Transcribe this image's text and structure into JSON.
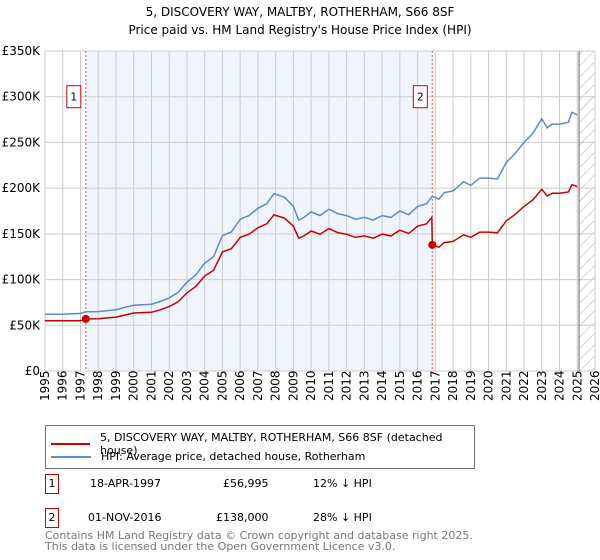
{
  "chart_data": {
    "type": "line",
    "title": "5, DISCOVERY WAY, MALTBY, ROTHERHAM, S66 8SF",
    "subtitle": "Price paid vs. HM Land Registry's House Price Index (HPI)",
    "xlim": [
      1995,
      2026
    ],
    "ylim": [
      0,
      350000
    ],
    "y_ticks": [
      0,
      50000,
      100000,
      150000,
      200000,
      250000,
      300000,
      350000
    ],
    "y_tick_labels": [
      "£0",
      "£50K",
      "£100K",
      "£150K",
      "£200K",
      "£250K",
      "£300K",
      "£350K"
    ],
    "x_tick_labels": [
      "1995",
      "1996",
      "1997",
      "1998",
      "1999",
      "2000",
      "2001",
      "2002",
      "2003",
      "2004",
      "2005",
      "2006",
      "2007",
      "2008",
      "2009",
      "2010",
      "2011",
      "2012",
      "2013",
      "2014",
      "2015",
      "2016",
      "2017",
      "2018",
      "2019",
      "2020",
      "2021",
      "2022",
      "2023",
      "2024",
      "2025",
      "2026"
    ],
    "grid": true,
    "shaded_period": [
      1997.3,
      2016.83
    ],
    "forecast_hatch_from": 2025.1,
    "series": [
      {
        "name": "5, DISCOVERY WAY, MALTBY, ROTHERHAM, S66 8SF (detached house)",
        "color": "#cc0000",
        "x": [
          1995,
          1996,
          1997,
          1997.3,
          1998,
          1999,
          2000,
          2001,
          2001.5,
          2002,
          2002.5,
          2003,
          2003.5,
          2004,
          2004.5,
          2005,
          2005.5,
          2006,
          2006.5,
          2007,
          2007.5,
          2007.9,
          2008.5,
          2009,
          2009.3,
          2009.6,
          2010,
          2010.5,
          2011,
          2011.5,
          2012,
          2012.5,
          2013,
          2013.5,
          2014,
          2014.5,
          2015,
          2015.5,
          2016,
          2016.5,
          2016.8,
          2016.83,
          2017.2,
          2017.5,
          2018,
          2018.6,
          2019,
          2019.5,
          2020,
          2020.5,
          2021,
          2021.5,
          2022,
          2022.5,
          2023,
          2023.3,
          2023.6,
          2024,
          2024.5,
          2024.7,
          2025
        ],
        "y": [
          55000,
          55000,
          55000,
          57000,
          57200,
          59000,
          63400,
          64200,
          66900,
          70400,
          75700,
          85400,
          92400,
          103800,
          110000,
          130200,
          133800,
          146100,
          149600,
          156600,
          161000,
          170700,
          167200,
          158400,
          145200,
          147800,
          153100,
          149600,
          155800,
          151400,
          149600,
          146100,
          147800,
          145200,
          149600,
          147800,
          154000,
          150500,
          158400,
          161000,
          168000,
          138000,
          135400,
          140400,
          141800,
          149000,
          146200,
          151900,
          151900,
          151200,
          164200,
          171400,
          180000,
          187200,
          198700,
          191500,
          194400,
          194400,
          195800,
          203800,
          201600
        ]
      },
      {
        "name": "HPI: Average price, detached house, Rotherham",
        "color": "#5b8bd0",
        "x": [
          1995,
          1996,
          1997,
          1997.3,
          1998,
          1999,
          2000,
          2001,
          2001.5,
          2002,
          2002.5,
          2003,
          2003.5,
          2004,
          2004.5,
          2005,
          2005.5,
          2006,
          2006.5,
          2007,
          2007.5,
          2007.9,
          2008.5,
          2009,
          2009.3,
          2009.6,
          2010,
          2010.5,
          2011,
          2011.5,
          2012,
          2012.5,
          2013,
          2013.5,
          2014,
          2014.5,
          2015,
          2015.5,
          2016,
          2016.5,
          2016.83,
          2017.2,
          2017.5,
          2018,
          2018.6,
          2019,
          2019.5,
          2020,
          2020.5,
          2021,
          2021.5,
          2022,
          2022.5,
          2023,
          2023.3,
          2023.6,
          2024,
          2024.5,
          2024.7,
          2025
        ],
        "y": [
          62000,
          62000,
          63000,
          64700,
          65000,
          67000,
          72000,
          73000,
          76000,
          80000,
          86000,
          97000,
          105000,
          118000,
          125000,
          148000,
          152000,
          166000,
          170000,
          178000,
          183000,
          194000,
          190000,
          180000,
          165000,
          168000,
          174000,
          170000,
          177000,
          172000,
          170000,
          166000,
          168000,
          165000,
          170000,
          168000,
          175000,
          171000,
          180000,
          183000,
          191000,
          188000,
          195000,
          197000,
          207000,
          203000,
          211000,
          211000,
          210000,
          228000,
          238000,
          250000,
          260000,
          276000,
          266000,
          270000,
          270000,
          272000,
          283000,
          280000
        ]
      }
    ],
    "sales": [
      {
        "label": "1",
        "x": 1997.3,
        "y": 56995
      },
      {
        "label": "2",
        "x": 2016.83,
        "y": 138000
      }
    ]
  },
  "legend": {
    "property": "5, DISCOVERY WAY, MALTBY, ROTHERHAM, S66 8SF (detached house)",
    "hpi": "HPI: Average price, detached house, Rotherham"
  },
  "transactions": [
    {
      "num": "1",
      "date": "18-APR-1997",
      "price": "£56,995",
      "hpi": "12% ↓ HPI"
    },
    {
      "num": "2",
      "date": "01-NOV-2016",
      "price": "£138,000",
      "hpi": "28% ↓ HPI"
    }
  ],
  "footer": {
    "line1": "Contains HM Land Registry data © Crown copyright and database right 2025.",
    "line2": "This data is licensed under the Open Government Licence v3.0."
  }
}
